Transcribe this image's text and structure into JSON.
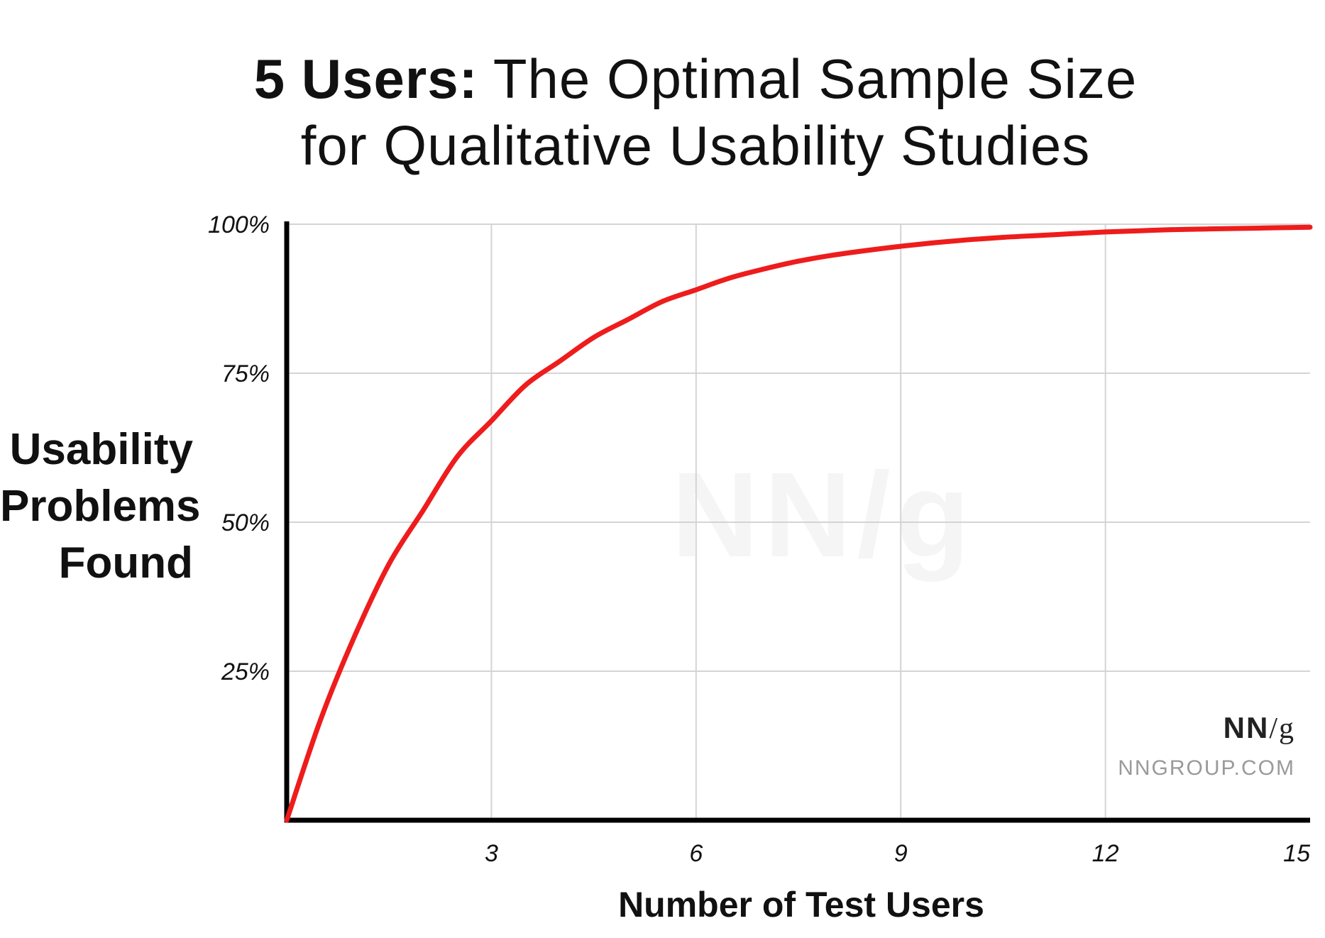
{
  "title": {
    "bold_part": "5 Users:",
    "rest_line1": " The Optimal Sample Size",
    "line2": "for Qualitative Usability Studies"
  },
  "branding": {
    "logo_nn": "NN",
    "logo_slash": "/",
    "logo_g": "g",
    "url": "NNGROUP.COM",
    "watermark": "NN/g"
  },
  "chart_data": {
    "type": "line",
    "title": "5 Users: The Optimal Sample Size for Qualitative Usability Studies",
    "xlabel": "Number of Test Users",
    "ylabel_lines": [
      "Usability",
      "Problems",
      "Found"
    ],
    "xlim": [
      0,
      15
    ],
    "ylim": [
      0,
      100
    ],
    "x_ticks": [
      3,
      6,
      9,
      12,
      15
    ],
    "x_tick_labels": [
      "3",
      "6",
      "9",
      "12",
      "15"
    ],
    "y_ticks": [
      25,
      50,
      75,
      100
    ],
    "y_tick_labels": [
      "25%",
      "50%",
      "75%",
      "100%"
    ],
    "grid": true,
    "line_color": "#ee1c1c",
    "series": [
      {
        "x": [
          0,
          0.5,
          1,
          1.5,
          2,
          2.5,
          3,
          3.5,
          4,
          4.5,
          5,
          5.5,
          6,
          6.5,
          7,
          7.5,
          8,
          8.5,
          9,
          9.5,
          10,
          10.5,
          11,
          11.5,
          12,
          12.5,
          13,
          13.5,
          14,
          14.5,
          15
        ],
        "values": [
          0,
          17,
          31,
          43,
          52,
          61,
          67,
          73,
          77,
          81,
          84,
          87,
          89,
          91,
          92.5,
          93.8,
          94.8,
          95.6,
          96.3,
          96.9,
          97.4,
          97.8,
          98.1,
          98.4,
          98.7,
          98.9,
          99.1,
          99.2,
          99.3,
          99.4,
          99.5
        ]
      }
    ]
  }
}
